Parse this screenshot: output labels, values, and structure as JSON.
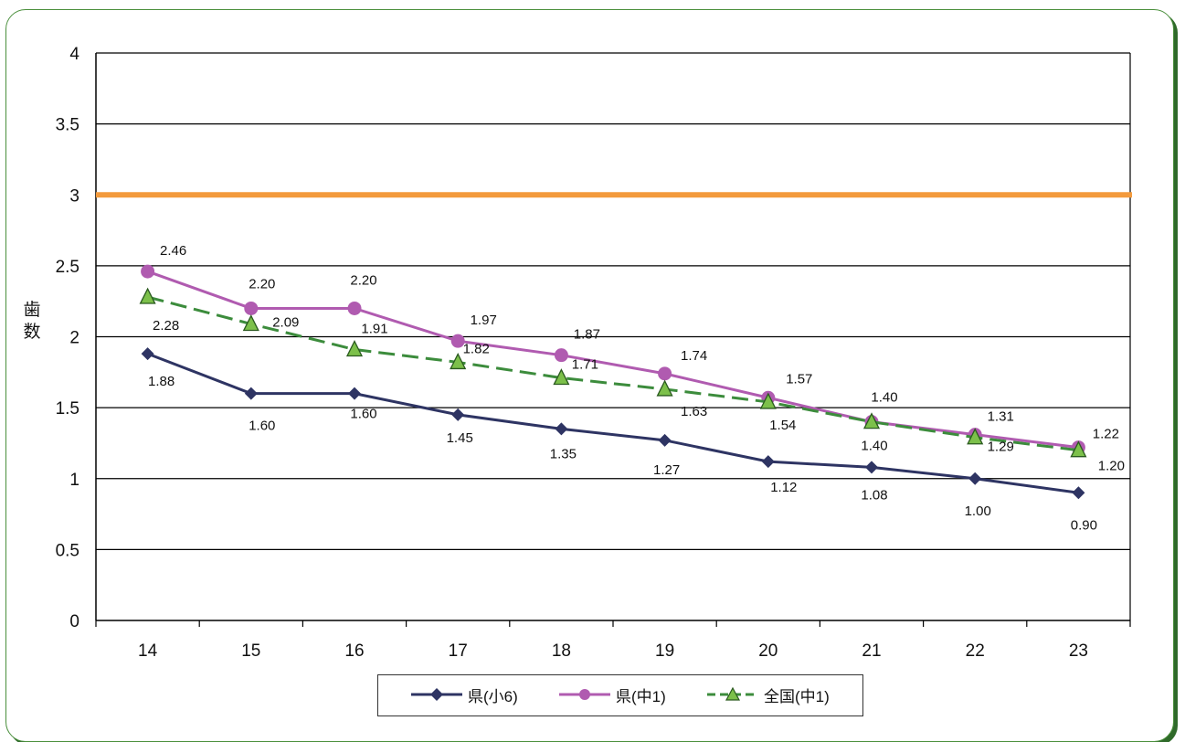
{
  "chart_data": {
    "type": "line",
    "title": "",
    "xlabel": "",
    "ylabel": "歯数",
    "categories": [
      "14",
      "15",
      "16",
      "17",
      "18",
      "19",
      "20",
      "21",
      "22",
      "23"
    ],
    "ylim": [
      0,
      4
    ],
    "yticks": [
      "0",
      "0.5",
      "1",
      "1.5",
      "2",
      "2.5",
      "3",
      "3.5",
      "4"
    ],
    "grid": true,
    "legend_position": "bottom",
    "reference_line": {
      "value": 3,
      "color": "#f39a3c"
    },
    "series": [
      {
        "name": "県(小6)",
        "color": "#2e3463",
        "marker": "diamond",
        "dashed": false,
        "values": [
          1.88,
          1.6,
          1.6,
          1.45,
          1.35,
          1.27,
          1.12,
          1.08,
          1.0,
          0.9
        ],
        "labels": [
          "1.88",
          "1.60",
          "1.60",
          "1.45",
          "1.35",
          "1.27",
          "1.12",
          "1.08",
          "1.00",
          "0.90"
        ]
      },
      {
        "name": "県(中1)",
        "color": "#b05bb0",
        "marker": "circle",
        "dashed": false,
        "values": [
          2.46,
          2.2,
          2.2,
          1.97,
          1.87,
          1.74,
          1.57,
          1.4,
          1.31,
          1.22
        ],
        "labels": [
          "2.46",
          "2.20",
          "2.20",
          "1.97",
          "1.87",
          "1.74",
          "1.57",
          "1.40",
          "1.31",
          "1.22"
        ]
      },
      {
        "name": "全国(中1)",
        "color": "#3c8c3c",
        "marker": "triangle",
        "dashed": true,
        "values": [
          2.28,
          2.09,
          1.91,
          1.82,
          1.71,
          1.63,
          1.54,
          1.4,
          1.29,
          1.2
        ],
        "labels": [
          "2.28",
          "2.09",
          "1.91",
          "1.82",
          "1.71",
          "1.63",
          "1.54",
          "1.40",
          "1.29",
          "1.20"
        ]
      }
    ]
  }
}
